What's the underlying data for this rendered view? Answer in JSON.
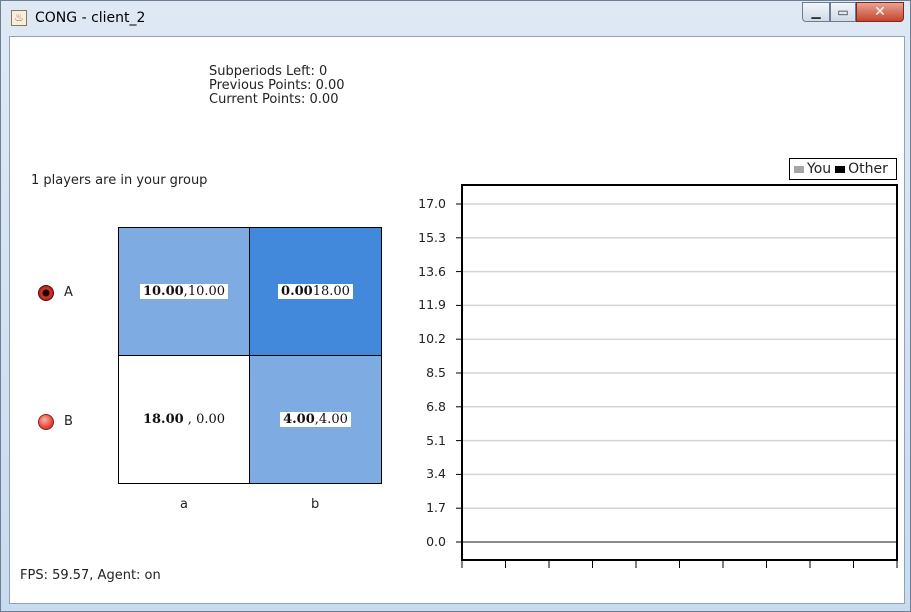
{
  "window": {
    "title": "CONG - client_2",
    "app_icon": "java-cup-icon"
  },
  "status": {
    "subperiods_left": "Subperiods Left: 0",
    "previous_points": "Previous Points: 0.00",
    "current_points": "Current Points: 0.00"
  },
  "group_text": "1 players are in your group",
  "rows": [
    {
      "label": "A",
      "selected": true
    },
    {
      "label": "B",
      "selected": false
    }
  ],
  "columns": [
    "a",
    "b"
  ],
  "matrix": {
    "Aa": {
      "mine": "10.00",
      "sep": ",",
      "other": "10.00",
      "color": "#7eabe2"
    },
    "Ab": {
      "mine": "0.00",
      "sep": "",
      "other": "18.00",
      "color": "#4289dc"
    },
    "Ba": {
      "mine": "18.00",
      "sep": " ,",
      "other": "0.00",
      "color": "#ffffff"
    },
    "Bb": {
      "mine": "4.00",
      "sep": ",",
      "other": "4.00",
      "color": "#7eabe2"
    }
  },
  "fps_text": "FPS: 59.57, Agent: on",
  "legend": {
    "you": {
      "label": "You",
      "color": "#a6a6a6"
    },
    "other": {
      "label": "Other",
      "color": "#000000"
    }
  },
  "chart_data": {
    "type": "line",
    "y_ticks": [
      "17.0",
      "15.3",
      "13.6",
      "11.9",
      "10.2",
      "8.5",
      "6.8",
      "5.1",
      "3.4",
      "1.7",
      "0.0"
    ],
    "ylim": [
      0,
      17.0
    ],
    "x_tick_count": 11,
    "grid": true,
    "legend_position": "top-right",
    "series": [
      {
        "name": "You",
        "values": []
      },
      {
        "name": "Other",
        "values": []
      }
    ]
  }
}
